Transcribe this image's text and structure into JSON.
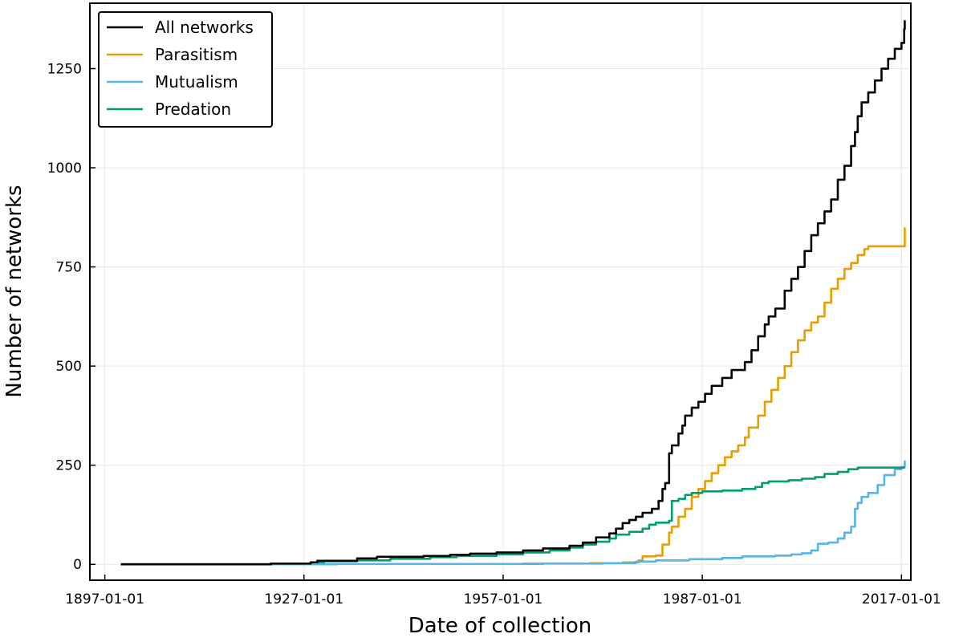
{
  "chart_data": {
    "type": "line",
    "title": "",
    "xlabel": "Date of collection",
    "ylabel": "Number of networks",
    "x_axis": {
      "type": "date",
      "range": [
        "1894-10-01",
        "2018-06-01"
      ],
      "ticks": [
        "1897-01-01",
        "1927-01-01",
        "1957-01-01",
        "1987-01-01",
        "2017-01-01"
      ]
    },
    "y_axis": {
      "range": [
        -40,
        1415
      ],
      "ticks": [
        0,
        250,
        500,
        750,
        1000,
        1250
      ]
    },
    "grid": true,
    "legend_position": "top-left",
    "step": true,
    "series": [
      {
        "name": "All networks",
        "color": "#000000",
        "points": [
          [
            "1899-06-01",
            0
          ],
          [
            "1922-01-01",
            2
          ],
          [
            "1928-01-01",
            5
          ],
          [
            "1929-01-01",
            9
          ],
          [
            "1935-01-01",
            15
          ],
          [
            "1938-01-01",
            19
          ],
          [
            "1945-01-01",
            21
          ],
          [
            "1949-01-01",
            24
          ],
          [
            "1952-01-01",
            27
          ],
          [
            "1956-01-01",
            30
          ],
          [
            "1960-01-01",
            35
          ],
          [
            "1963-01-01",
            40
          ],
          [
            "1967-01-01",
            47
          ],
          [
            "1969-01-01",
            55
          ],
          [
            "1971-01-01",
            68
          ],
          [
            "1973-01-01",
            78
          ],
          [
            "1974-01-01",
            90
          ],
          [
            "1975-01-01",
            104
          ],
          [
            "1976-01-01",
            112
          ],
          [
            "1977-01-01",
            120
          ],
          [
            "1978-01-01",
            130
          ],
          [
            "1979-06-01",
            140
          ],
          [
            "1980-06-01",
            160
          ],
          [
            "1981-01-01",
            190
          ],
          [
            "1981-06-01",
            205
          ],
          [
            "1982-01-01",
            280
          ],
          [
            "1982-06-01",
            300
          ],
          [
            "1983-06-01",
            330
          ],
          [
            "1984-01-01",
            350
          ],
          [
            "1984-06-01",
            375
          ],
          [
            "1985-06-01",
            395
          ],
          [
            "1986-06-01",
            410
          ],
          [
            "1987-06-01",
            430
          ],
          [
            "1988-06-01",
            450
          ],
          [
            "1990-01-01",
            470
          ],
          [
            "1991-06-01",
            490
          ],
          [
            "1993-06-01",
            510
          ],
          [
            "1994-06-01",
            540
          ],
          [
            "1995-06-01",
            575
          ],
          [
            "1996-06-01",
            605
          ],
          [
            "1997-01-01",
            625
          ],
          [
            "1998-01-01",
            645
          ],
          [
            "1999-06-01",
            690
          ],
          [
            "2000-06-01",
            720
          ],
          [
            "2001-06-01",
            750
          ],
          [
            "2002-06-01",
            790
          ],
          [
            "2003-06-01",
            830
          ],
          [
            "2004-06-01",
            860
          ],
          [
            "2005-06-01",
            890
          ],
          [
            "2006-06-01",
            920
          ],
          [
            "2007-06-01",
            970
          ],
          [
            "2008-06-01",
            1005
          ],
          [
            "2009-06-01",
            1055
          ],
          [
            "2010-01-01",
            1090
          ],
          [
            "2010-06-01",
            1130
          ],
          [
            "2011-01-01",
            1165
          ],
          [
            "2012-01-01",
            1190
          ],
          [
            "2013-01-01",
            1220
          ],
          [
            "2014-01-01",
            1250
          ],
          [
            "2015-01-01",
            1275
          ],
          [
            "2016-01-01",
            1300
          ],
          [
            "2017-01-01",
            1315
          ],
          [
            "2017-06-01",
            1350
          ],
          [
            "2017-07-01",
            1372
          ]
        ]
      },
      {
        "name": "Parasitism",
        "color": "#e69f00",
        "points": [
          [
            "1899-06-01",
            0
          ],
          [
            "1927-01-01",
            1
          ],
          [
            "1960-01-01",
            2
          ],
          [
            "1970-01-01",
            3
          ],
          [
            "1975-01-01",
            5
          ],
          [
            "1977-06-01",
            10
          ],
          [
            "1978-01-01",
            20
          ],
          [
            "1980-01-01",
            22
          ],
          [
            "1981-01-01",
            50
          ],
          [
            "1982-01-01",
            80
          ],
          [
            "1982-06-01",
            95
          ],
          [
            "1983-06-01",
            120
          ],
          [
            "1984-06-01",
            140
          ],
          [
            "1985-06-01",
            170
          ],
          [
            "1986-06-01",
            190
          ],
          [
            "1987-06-01",
            210
          ],
          [
            "1988-06-01",
            230
          ],
          [
            "1989-06-01",
            250
          ],
          [
            "1990-06-01",
            270
          ],
          [
            "1991-06-01",
            285
          ],
          [
            "1992-06-01",
            300
          ],
          [
            "1993-06-01",
            320
          ],
          [
            "1994-01-01",
            345
          ],
          [
            "1995-06-01",
            375
          ],
          [
            "1996-06-01",
            410
          ],
          [
            "1997-06-01",
            440
          ],
          [
            "1998-06-01",
            470
          ],
          [
            "1999-06-01",
            500
          ],
          [
            "2000-06-01",
            535
          ],
          [
            "2001-06-01",
            565
          ],
          [
            "2002-06-01",
            590
          ],
          [
            "2003-06-01",
            610
          ],
          [
            "2004-06-01",
            625
          ],
          [
            "2005-06-01",
            660
          ],
          [
            "2006-06-01",
            695
          ],
          [
            "2007-06-01",
            720
          ],
          [
            "2008-06-01",
            745
          ],
          [
            "2009-06-01",
            760
          ],
          [
            "2010-06-01",
            780
          ],
          [
            "2011-06-01",
            795
          ],
          [
            "2012-01-01",
            802
          ],
          [
            "2017-07-01",
            802
          ],
          [
            "2017-07-02",
            850
          ]
        ]
      },
      {
        "name": "Mutualism",
        "color": "#56b4e9",
        "points": [
          [
            "1899-06-01",
            0
          ],
          [
            "1932-01-01",
            1
          ],
          [
            "1963-01-01",
            2
          ],
          [
            "1972-01-01",
            3
          ],
          [
            "1977-01-01",
            7
          ],
          [
            "1980-01-01",
            10
          ],
          [
            "1985-01-01",
            13
          ],
          [
            "1990-01-01",
            16
          ],
          [
            "1993-01-01",
            20
          ],
          [
            "1998-01-01",
            22
          ],
          [
            "2000-06-01",
            25
          ],
          [
            "2002-01-01",
            28
          ],
          [
            "2003-06-01",
            35
          ],
          [
            "2004-06-01",
            52
          ],
          [
            "2006-01-01",
            55
          ],
          [
            "2007-06-01",
            65
          ],
          [
            "2008-06-01",
            80
          ],
          [
            "2009-06-01",
            95
          ],
          [
            "2010-01-01",
            140
          ],
          [
            "2010-06-01",
            155
          ],
          [
            "2011-01-01",
            170
          ],
          [
            "2012-01-01",
            180
          ],
          [
            "2013-06-01",
            200
          ],
          [
            "2014-06-01",
            225
          ],
          [
            "2016-01-01",
            240
          ],
          [
            "2017-01-01",
            245
          ],
          [
            "2017-07-01",
            262
          ]
        ]
      },
      {
        "name": "Predation",
        "color": "#009e73",
        "points": [
          [
            "1899-06-01",
            0
          ],
          [
            "1922-01-01",
            2
          ],
          [
            "1928-01-01",
            5
          ],
          [
            "1930-01-01",
            8
          ],
          [
            "1935-01-01",
            10
          ],
          [
            "1940-01-01",
            14
          ],
          [
            "1946-01-01",
            18
          ],
          [
            "1950-01-01",
            21
          ],
          [
            "1956-01-01",
            25
          ],
          [
            "1960-01-01",
            30
          ],
          [
            "1964-01-01",
            35
          ],
          [
            "1967-01-01",
            42
          ],
          [
            "1969-01-01",
            50
          ],
          [
            "1971-01-01",
            57
          ],
          [
            "1973-01-01",
            65
          ],
          [
            "1974-01-01",
            75
          ],
          [
            "1976-01-01",
            82
          ],
          [
            "1978-01-01",
            90
          ],
          [
            "1979-01-01",
            100
          ],
          [
            "1980-01-01",
            105
          ],
          [
            "1982-01-01",
            110
          ],
          [
            "1982-06-01",
            160
          ],
          [
            "1983-06-01",
            165
          ],
          [
            "1984-06-01",
            175
          ],
          [
            "1985-06-01",
            180
          ],
          [
            "1987-01-01",
            184
          ],
          [
            "1990-01-01",
            186
          ],
          [
            "1993-01-01",
            190
          ],
          [
            "1995-01-01",
            195
          ],
          [
            "1996-01-01",
            205
          ],
          [
            "1997-01-01",
            209
          ],
          [
            "2000-01-01",
            212
          ],
          [
            "2002-01-01",
            216
          ],
          [
            "2004-01-01",
            220
          ],
          [
            "2005-06-01",
            228
          ],
          [
            "2007-06-01",
            233
          ],
          [
            "2009-01-01",
            240
          ],
          [
            "2010-06-01",
            244
          ],
          [
            "2017-07-01",
            244
          ]
        ]
      }
    ]
  }
}
